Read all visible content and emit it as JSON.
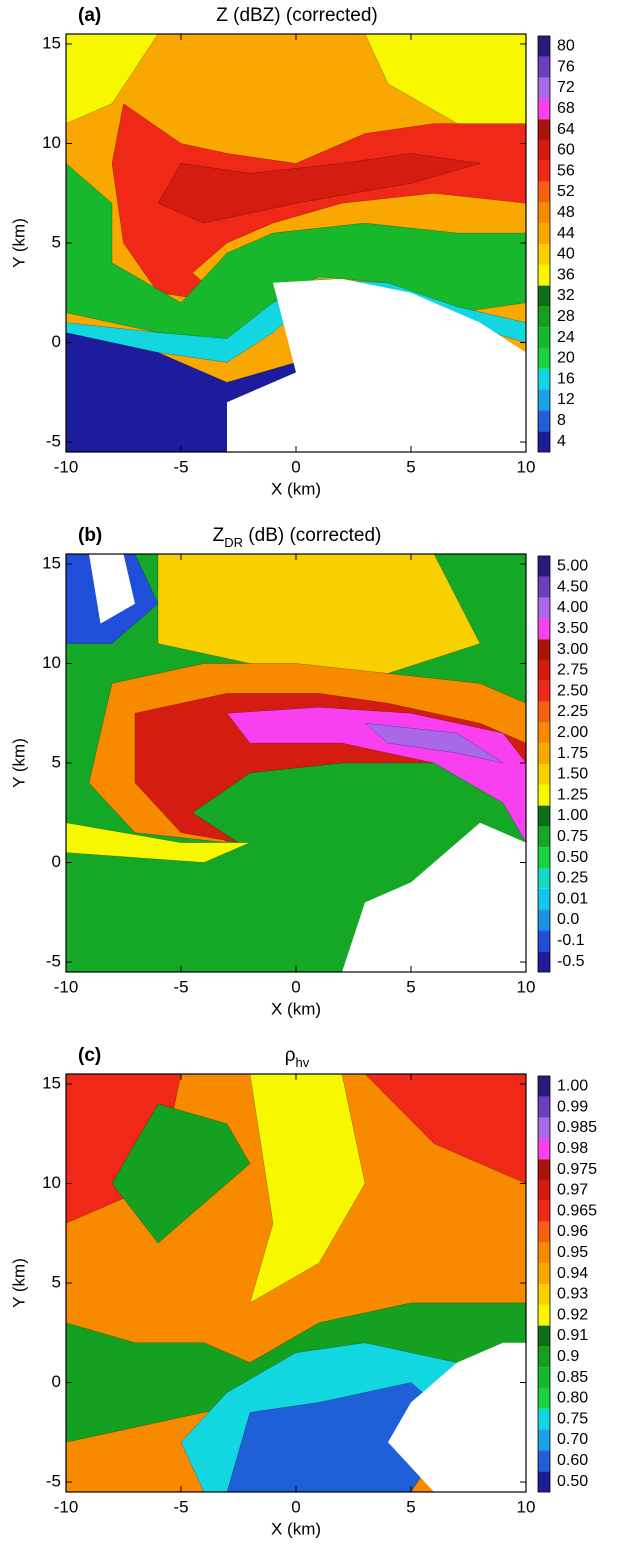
{
  "chart_data": [
    {
      "type": "contour",
      "panel_label": "(a)",
      "title": [
        {
          "text": "Z (dBZ) (corrected)"
        }
      ],
      "x_label": "X (km)",
      "y_label": "Y (km)",
      "xlim": [
        -10,
        10
      ],
      "ylim": [
        -5.5,
        15.5
      ],
      "xticks": [
        -10,
        -5,
        0,
        5,
        10
      ],
      "yticks": [
        -5,
        0,
        5,
        10,
        15
      ],
      "colorbar_levels": [
        4,
        8,
        12,
        16,
        20,
        24,
        28,
        32,
        36,
        40,
        44,
        48,
        52,
        56,
        60,
        64,
        68,
        72,
        76,
        80
      ],
      "colorbar_colors": [
        "#1c1c9c",
        "#1f5fd8",
        "#1a9fe8",
        "#12d6e0",
        "#1ad23c",
        "#17b82c",
        "#14a020",
        "#0a6e1a",
        "#f7f700",
        "#f8d000",
        "#f8a800",
        "#f88a00",
        "#f85e10",
        "#f02818",
        "#d41c10",
        "#a8140c",
        "#f840f0",
        "#a868e8",
        "#6a40c0",
        "#2f1a80"
      ]
    },
    {
      "type": "contour",
      "panel_label": "(b)",
      "title": [
        {
          "text": "Z"
        },
        {
          "text": "DR",
          "sub": true
        },
        {
          "text": " (dB) (corrected)"
        }
      ],
      "x_label": "X (km)",
      "y_label": "Y (km)",
      "xlim": [
        -10,
        10
      ],
      "ylim": [
        -5.5,
        15.5
      ],
      "xticks": [
        -10,
        -5,
        0,
        5,
        10
      ],
      "yticks": [
        -5,
        0,
        5,
        10,
        15
      ],
      "colorbar_levels": [
        -0.5,
        -0.1,
        {
          "value": 0,
          "label": "0.0"
        },
        0.01,
        0.25,
        {
          "value": 0.5,
          "label": "0.50"
        },
        0.75,
        {
          "value": 1,
          "label": "1.00"
        },
        1.25,
        {
          "value": 1.5,
          "label": "1.50"
        },
        1.75,
        {
          "value": 2,
          "label": "2.00"
        },
        2.25,
        {
          "value": 2.5,
          "label": "2.50"
        },
        2.75,
        {
          "value": 3,
          "label": "3.00"
        },
        {
          "value": 3.5,
          "label": "3.50"
        },
        {
          "value": 4,
          "label": "4.00"
        },
        {
          "value": 4.5,
          "label": "4.50"
        },
        {
          "value": 5,
          "label": "5.00"
        }
      ],
      "colorbar_colors": [
        "#1c1c9c",
        "#1f4fd8",
        "#1a90e8",
        "#12c8e8",
        "#12dcc0",
        "#1ad23c",
        "#15a826",
        "#0a6e1a",
        "#f7f700",
        "#f8d000",
        "#f8a800",
        "#f88a00",
        "#f85e10",
        "#f02818",
        "#d41c10",
        "#a8140c",
        "#f840f0",
        "#a868e8",
        "#6a40c0",
        "#2f1a80"
      ]
    },
    {
      "type": "contour",
      "panel_label": "(c)",
      "title": [
        {
          "text": "ρ"
        },
        {
          "text": "hv",
          "sub": true
        }
      ],
      "x_label": "X (km)",
      "y_label": "Y (km)",
      "xlim": [
        -10,
        10
      ],
      "ylim": [
        -5.5,
        15.5
      ],
      "xticks": [
        -10,
        -5,
        0,
        5,
        10
      ],
      "yticks": [
        -5,
        0,
        5,
        10,
        15
      ],
      "colorbar_levels": [
        {
          "value": 0.5,
          "label": "0.50"
        },
        {
          "value": 0.6,
          "label": "0.60"
        },
        {
          "value": 0.7,
          "label": "0.70"
        },
        0.75,
        {
          "value": 0.8,
          "label": "0.80"
        },
        0.85,
        0.9,
        0.91,
        0.92,
        0.93,
        0.94,
        0.95,
        0.96,
        0.965,
        0.97,
        0.975,
        0.98,
        0.985,
        0.99,
        {
          "value": 1,
          "label": "1.00"
        }
      ],
      "colorbar_colors": [
        "#1c1c9c",
        "#1f5fd8",
        "#1a9fe8",
        "#12d6e0",
        "#1ad23c",
        "#17b82c",
        "#14a020",
        "#0a6e1a",
        "#f7f700",
        "#f8d000",
        "#f8a800",
        "#f88a00",
        "#f85e10",
        "#f02818",
        "#d41c10",
        "#a8140c",
        "#f840f0",
        "#a868e8",
        "#6a40c0",
        "#2f1a80"
      ]
    }
  ]
}
